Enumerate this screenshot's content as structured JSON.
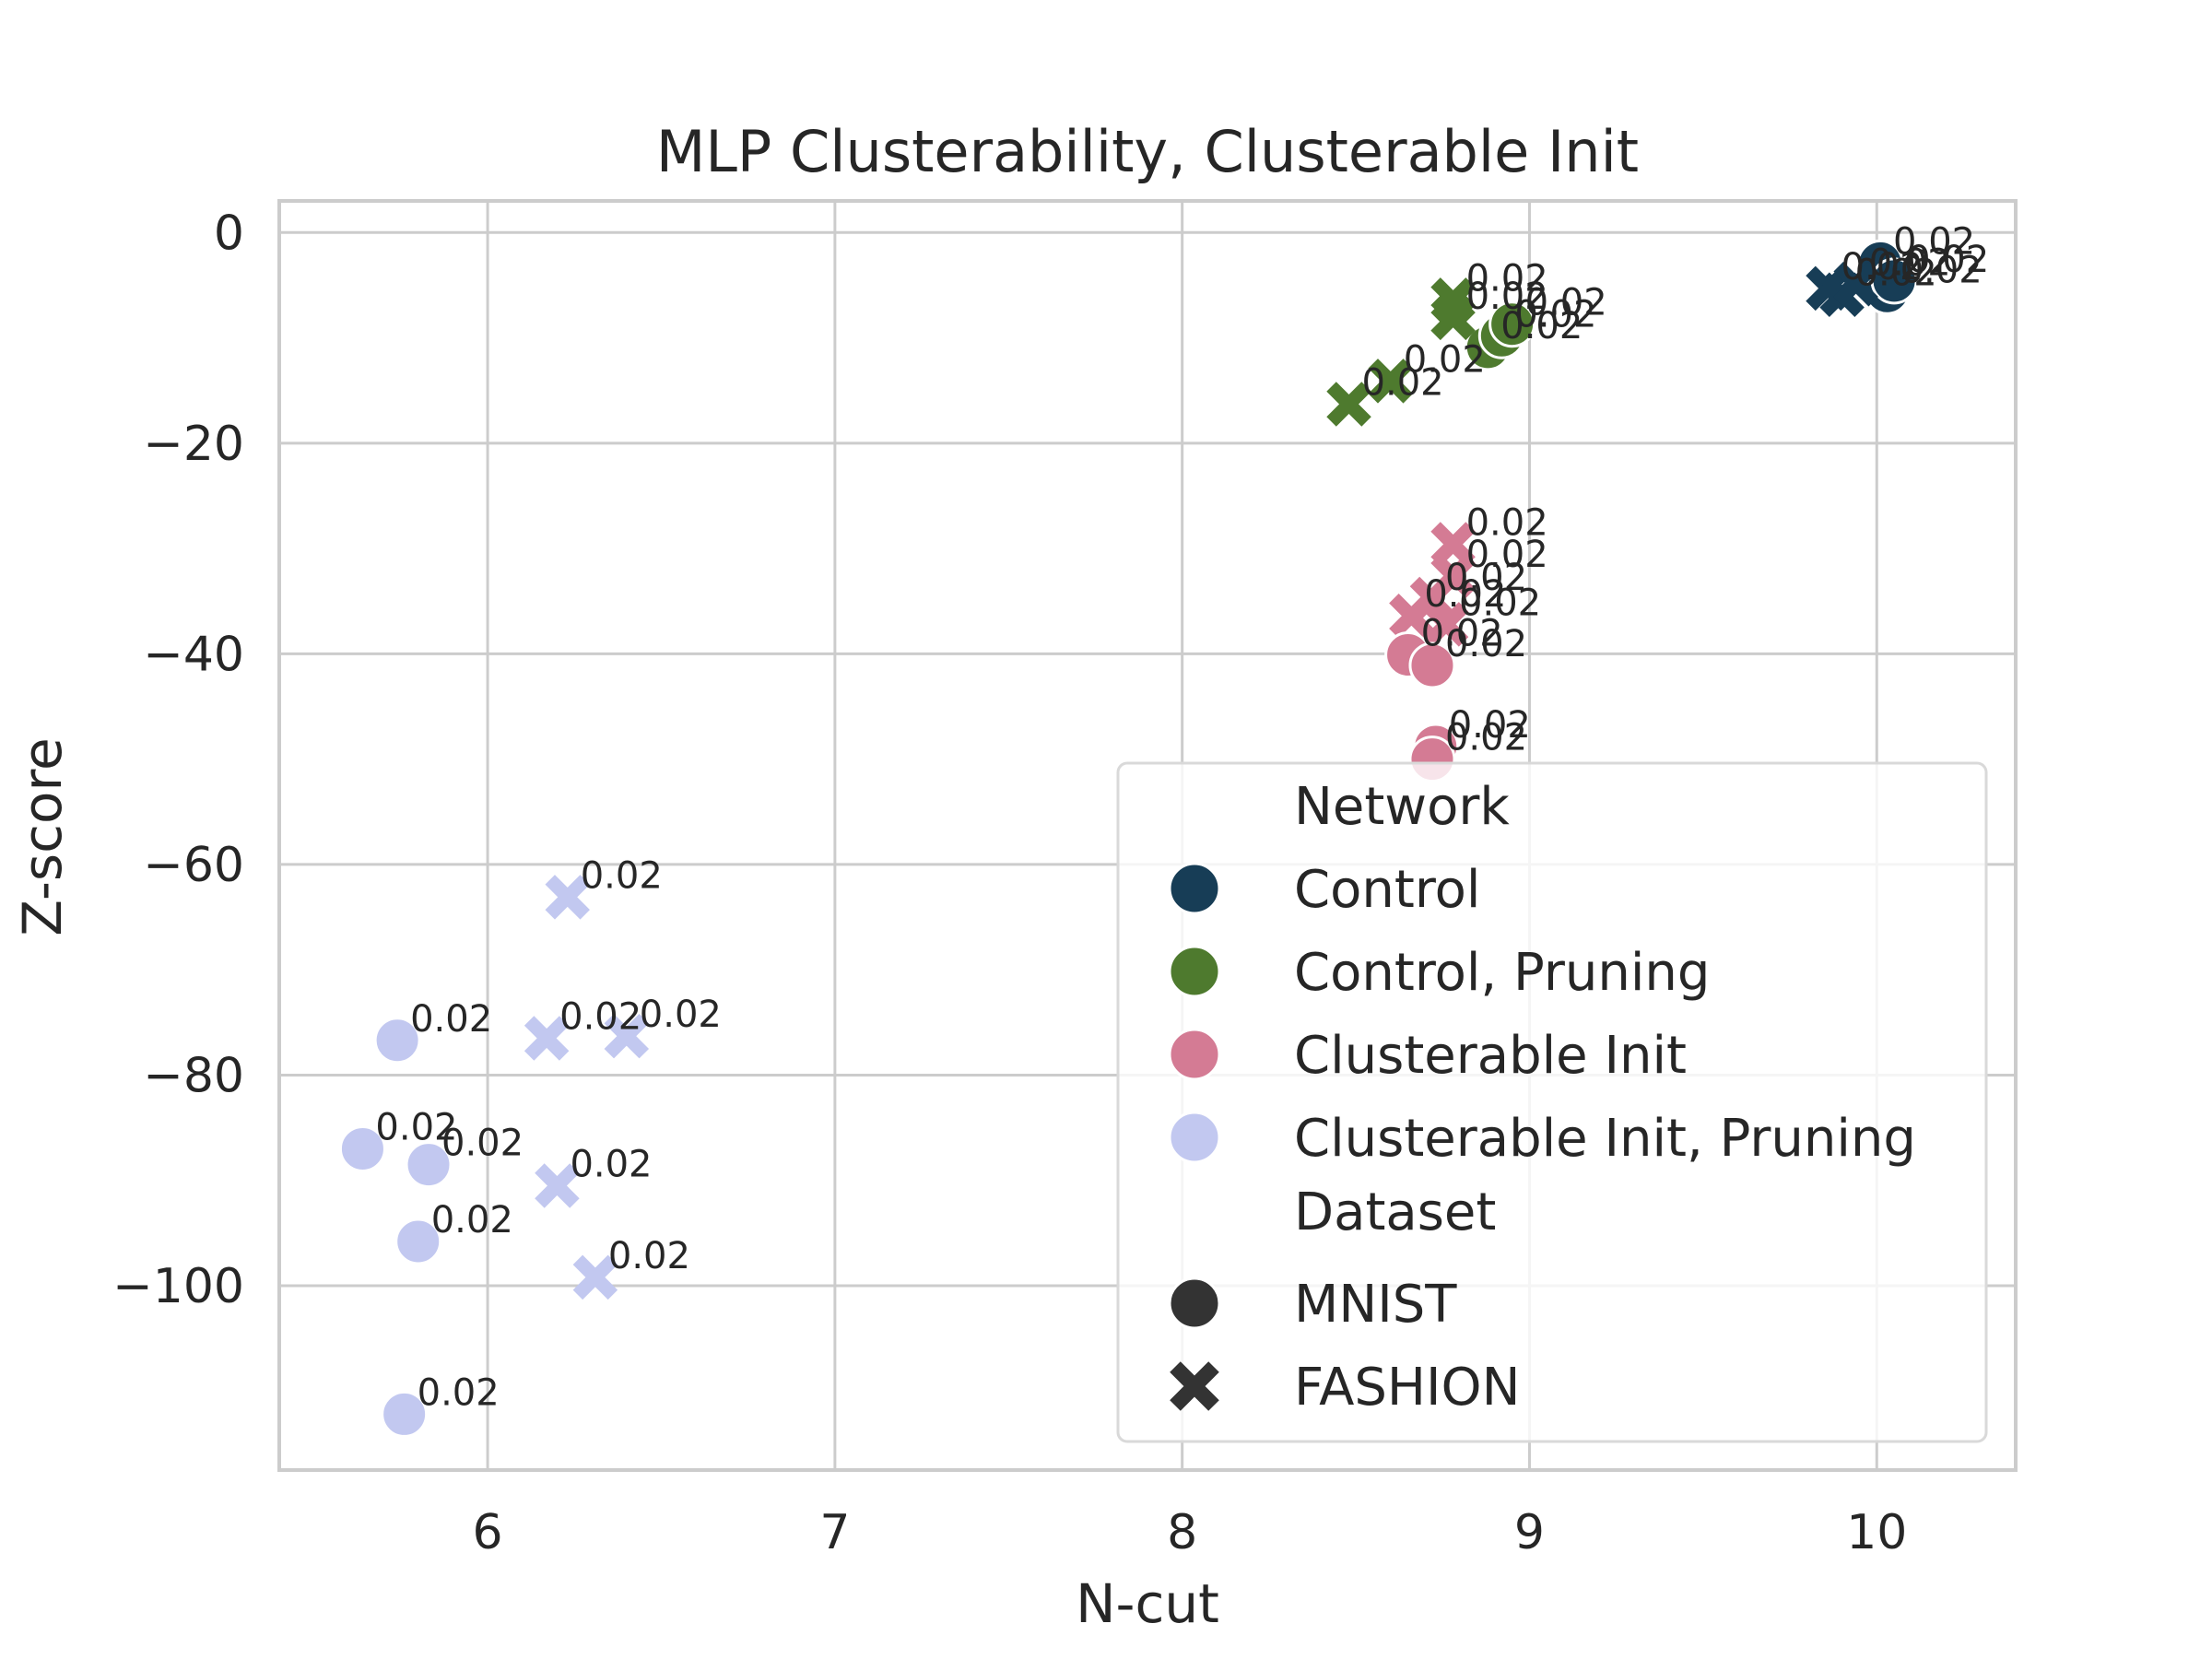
{
  "chart_data": {
    "type": "scatter",
    "title": "MLP Clusterability, Clusterable Init",
    "xlabel": "N-cut",
    "ylabel": "Z-score",
    "xlim": [
      5.4,
      10.4
    ],
    "ylim": [
      -117.5,
      3
    ],
    "xticks": [
      6,
      7,
      8,
      9,
      10
    ],
    "xtick_labels": [
      "6",
      "7",
      "8",
      "9",
      "10"
    ],
    "yticks": [
      0,
      -20,
      -40,
      -60,
      -80,
      -100
    ],
    "ytick_labels": [
      "0",
      "−20",
      "−40",
      "−60",
      "−80",
      "−100"
    ],
    "grid": true,
    "colors": {
      "Control": "#173d56",
      "Control, Pruning": "#4e7a2e",
      "Clusterable Init": "#d47b94",
      "Clusterable Init, Pruning": "#c2c8f0"
    },
    "legend": {
      "placement": "lower-right",
      "hue_title": "Network",
      "style_title": "Dataset",
      "hue_entries": [
        "Control",
        "Control, Pruning",
        "Clusterable Init",
        "Clusterable Init, Pruning"
      ],
      "style_entries": [
        {
          "label": "MNIST",
          "marker": "circle"
        },
        {
          "label": "FASHION",
          "marker": "x"
        }
      ]
    },
    "points": [
      {
        "network": "Control",
        "dataset": "MNIST",
        "x": 10.01,
        "y": -2.9,
        "label": "0.02"
      },
      {
        "network": "Control",
        "dataset": "MNIST",
        "x": 10.03,
        "y": -5.6,
        "label": "0.02"
      },
      {
        "network": "Control",
        "dataset": "MNIST",
        "x": 10.05,
        "y": -4.6,
        "label": "0.02"
      },
      {
        "network": "Control",
        "dataset": "FASHION",
        "x": 9.86,
        "y": -5.3,
        "label": "0.02"
      },
      {
        "network": "Control",
        "dataset": "FASHION",
        "x": 9.9,
        "y": -5.9,
        "label": "0.02"
      },
      {
        "network": "Control",
        "dataset": "FASHION",
        "x": 9.94,
        "y": -4.9,
        "label": "0.02"
      },
      {
        "network": "Control, Pruning",
        "dataset": "MNIST",
        "x": 8.88,
        "y": -10.9,
        "label": "0.02"
      },
      {
        "network": "Control, Pruning",
        "dataset": "MNIST",
        "x": 8.92,
        "y": -9.8,
        "label": "0.02"
      },
      {
        "network": "Control, Pruning",
        "dataset": "MNIST",
        "x": 8.95,
        "y": -8.7,
        "label": "0.02"
      },
      {
        "network": "Control, Pruning",
        "dataset": "FASHION",
        "x": 8.78,
        "y": -6.4,
        "label": "0.02"
      },
      {
        "network": "Control, Pruning",
        "dataset": "FASHION",
        "x": 8.78,
        "y": -8.1,
        "label": "0.02"
      },
      {
        "network": "Control, Pruning",
        "dataset": "FASHION",
        "x": 8.6,
        "y": -14.1,
        "label": "0.02"
      },
      {
        "network": "Control, Pruning",
        "dataset": "FASHION",
        "x": 8.48,
        "y": -16.3,
        "label": "0.02"
      },
      {
        "network": "Clusterable Init",
        "dataset": "FASHION",
        "x": 8.78,
        "y": -29.6,
        "label": "0.02"
      },
      {
        "network": "Clusterable Init",
        "dataset": "FASHION",
        "x": 8.78,
        "y": -32.6,
        "label": "0.02"
      },
      {
        "network": "Clusterable Init",
        "dataset": "FASHION",
        "x": 8.72,
        "y": -34.8,
        "label": "0.02"
      },
      {
        "network": "Clusterable Init",
        "dataset": "FASHION",
        "x": 8.66,
        "y": -36.4,
        "label": "0.02"
      },
      {
        "network": "Clusterable Init",
        "dataset": "FASHION",
        "x": 8.76,
        "y": -37.2,
        "label": "0.02"
      },
      {
        "network": "Clusterable Init",
        "dataset": "MNIST",
        "x": 8.65,
        "y": -40.1,
        "label": "0.02"
      },
      {
        "network": "Clusterable Init",
        "dataset": "MNIST",
        "x": 8.72,
        "y": -41.1,
        "label": "0.02"
      },
      {
        "network": "Clusterable Init",
        "dataset": "MNIST",
        "x": 8.73,
        "y": -48.8,
        "label": "0.02"
      },
      {
        "network": "Clusterable Init",
        "dataset": "MNIST",
        "x": 8.72,
        "y": -50.0,
        "label": "0.02"
      },
      {
        "network": "Clusterable Init, Pruning",
        "dataset": "FASHION",
        "x": 6.23,
        "y": -63.1,
        "label": "0.02"
      },
      {
        "network": "Clusterable Init, Pruning",
        "dataset": "FASHION",
        "x": 6.17,
        "y": -76.5,
        "label": "0.02"
      },
      {
        "network": "Clusterable Init, Pruning",
        "dataset": "FASHION",
        "x": 6.4,
        "y": -76.3,
        "label": "0.02"
      },
      {
        "network": "Clusterable Init, Pruning",
        "dataset": "FASHION",
        "x": 6.2,
        "y": -90.5,
        "label": "0.02"
      },
      {
        "network": "Clusterable Init, Pruning",
        "dataset": "FASHION",
        "x": 6.31,
        "y": -99.2,
        "label": "0.02"
      },
      {
        "network": "Clusterable Init, Pruning",
        "dataset": "MNIST",
        "x": 5.74,
        "y": -76.7,
        "label": "0.02"
      },
      {
        "network": "Clusterable Init, Pruning",
        "dataset": "MNIST",
        "x": 5.64,
        "y": -87.0,
        "label": "0.02"
      },
      {
        "network": "Clusterable Init, Pruning",
        "dataset": "MNIST",
        "x": 5.83,
        "y": -88.5,
        "label": "0.02"
      },
      {
        "network": "Clusterable Init, Pruning",
        "dataset": "MNIST",
        "x": 5.8,
        "y": -95.8,
        "label": "0.02"
      },
      {
        "network": "Clusterable Init, Pruning",
        "dataset": "MNIST",
        "x": 5.76,
        "y": -112.2,
        "label": "0.02"
      }
    ]
  }
}
